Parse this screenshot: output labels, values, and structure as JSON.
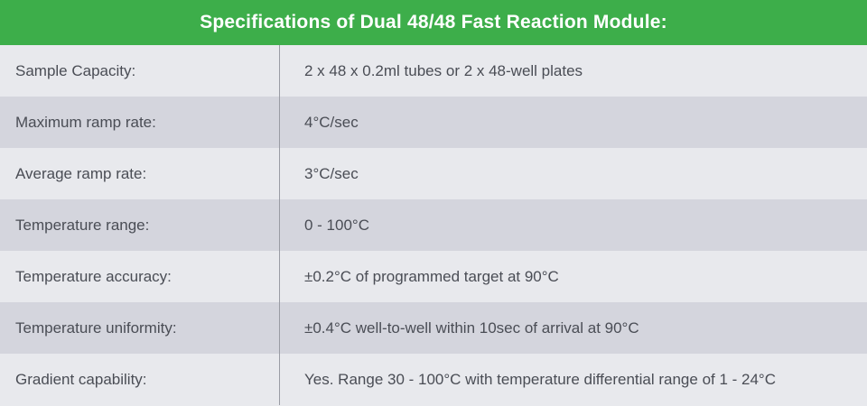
{
  "title": "Specifications of Dual 48/48 Fast Reaction Module:",
  "rows": [
    {
      "label": "Sample Capacity:",
      "value": "2 x 48 x 0.2ml tubes or 2 x 48-well plates"
    },
    {
      "label": "Maximum ramp rate:",
      "value": "4°C/sec"
    },
    {
      "label": "Average ramp rate:",
      "value": "3°C/sec"
    },
    {
      "label": "Temperature range:",
      "value": "0 - 100°C"
    },
    {
      "label": "Temperature accuracy:",
      "value": "±0.2°C of programmed target at 90°C"
    },
    {
      "label": "Temperature uniformity:",
      "value": "±0.4°C well-to-well within 10sec of arrival at 90°C"
    },
    {
      "label": "Gradient capability:",
      "value": "Yes. Range 30 - 100°C with temperature differential range of 1 - 24°C"
    }
  ],
  "colors": {
    "header_bg": "#3dae4a",
    "row_light": "#e8e9ed",
    "row_dark": "#d4d5dd",
    "text": "#4a4d55"
  }
}
